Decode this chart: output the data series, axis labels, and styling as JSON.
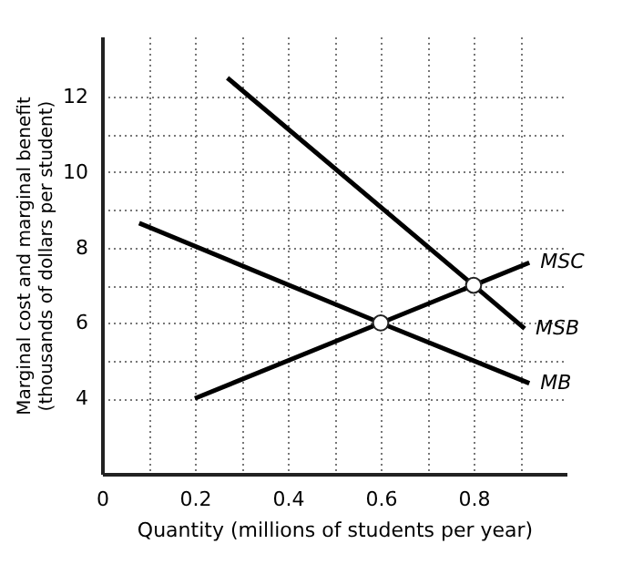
{
  "chart_data": {
    "type": "line",
    "xlabel": "Quantity (millions of students per year)",
    "ylabel": "Marginal cost and marginal benefit\n(thousands of dollars per student)",
    "xlim": [
      0,
      1
    ],
    "ylim": [
      2,
      13.6
    ],
    "xticks": [
      {
        "value": 0,
        "label": "0"
      },
      {
        "value": 0.1,
        "label": null
      },
      0.2,
      {
        "value": 0.3,
        "label": null
      },
      0.4,
      {
        "value": 0.5,
        "label": null
      },
      0.6,
      {
        "value": 0.7,
        "label": null
      },
      0.8,
      {
        "value": 0.9,
        "label": null
      }
    ],
    "yticks": [
      4,
      {
        "value": 5,
        "label": null
      },
      6,
      {
        "value": 7,
        "label": null
      },
      8,
      {
        "value": 9,
        "label": null
      },
      10,
      {
        "value": 11,
        "label": null
      },
      12
    ],
    "grid": true,
    "line_style": "solid",
    "series": [
      {
        "name": "MSC",
        "color": "#000000",
        "x": [
          0.2,
          0.6,
          0.8,
          0.92
        ],
        "values": [
          4,
          6,
          7,
          7.6
        ]
      },
      {
        "name": "MSB",
        "color": "#000000",
        "x": [
          0.27,
          0.8,
          0.91
        ],
        "values": [
          12.5,
          7,
          5.85
        ]
      },
      {
        "name": "MB",
        "color": "#000000",
        "x": [
          0.08,
          0.6,
          0.92
        ],
        "values": [
          8.65,
          6,
          4.4
        ]
      },
      {
        "type": "scatter",
        "marker": "circle",
        "color": "#ffffff",
        "x": [
          0.6,
          0.8
        ],
        "values": [
          6,
          7
        ]
      }
    ]
  }
}
